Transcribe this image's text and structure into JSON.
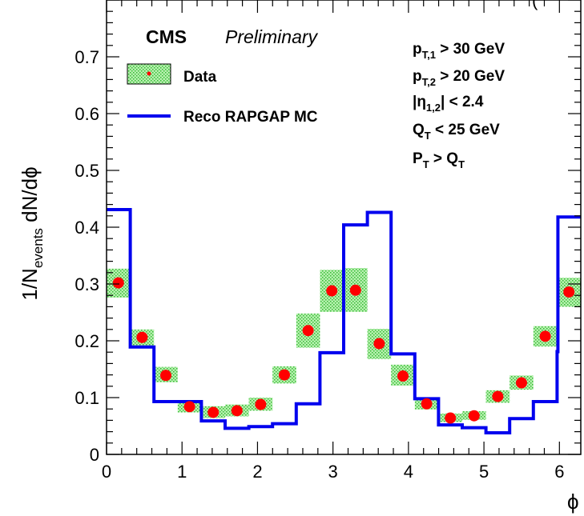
{
  "chart_data": {
    "type": "line",
    "header_fragment": "(",
    "cms_label": "CMS",
    "preliminary_label": "Preliminary",
    "xlabel": "ϕ",
    "ylabel": {
      "main": "1/N",
      "sub": "events",
      "tail": " dN/dϕ"
    },
    "xlim": [
      0,
      6.2832
    ],
    "ylim": [
      0,
      0.8
    ],
    "xticks": [
      "0",
      "1",
      "2",
      "3",
      "4",
      "5",
      "6"
    ],
    "yticks": [
      "0",
      "0.1",
      "0.2",
      "0.3",
      "0.4",
      "0.5",
      "0.6",
      "0.7"
    ],
    "bin_edges": [
      0,
      0.31416,
      0.62832,
      0.94248,
      1.25664,
      1.5708,
      1.88496,
      2.19912,
      2.51327,
      2.82743,
      3.14159,
      3.45575,
      3.76991,
      4.08407,
      4.39823,
      4.71239,
      5.02655,
      5.34071,
      5.65487,
      5.96903,
      6.28319
    ],
    "series": [
      {
        "name": "Data",
        "kind": "points_with_band",
        "marker_color": "#ff0000",
        "band_color": "#33cc33",
        "values": [
          0.302,
          0.206,
          0.139,
          0.084,
          0.074,
          0.077,
          0.088,
          0.14,
          0.218,
          0.288,
          0.289,
          0.195,
          0.138,
          0.089,
          0.064,
          0.068,
          0.102,
          0.126,
          0.208,
          0.286
        ],
        "band_low": [
          0.276,
          0.191,
          0.127,
          0.074,
          0.064,
          0.067,
          0.077,
          0.125,
          0.188,
          0.251,
          0.251,
          0.168,
          0.121,
          0.079,
          0.057,
          0.061,
          0.091,
          0.114,
          0.19,
          0.26
        ],
        "band_high": [
          0.327,
          0.22,
          0.154,
          0.094,
          0.085,
          0.088,
          0.1,
          0.155,
          0.248,
          0.325,
          0.328,
          0.221,
          0.158,
          0.1,
          0.072,
          0.076,
          0.113,
          0.139,
          0.226,
          0.311
        ]
      },
      {
        "name": "Reco RAPGAP MC",
        "kind": "step",
        "color": "#0000ee",
        "values": [
          0.431,
          0.189,
          0.093,
          0.093,
          0.059,
          0.046,
          0.049,
          0.054,
          0.089,
          0.179,
          0.404,
          0.426,
          0.177,
          0.098,
          0.052,
          0.047,
          0.038,
          0.063,
          0.093,
          0.181,
          0.418
        ]
      }
    ],
    "legend": {
      "placement": "top-left",
      "entries": [
        "Data",
        "Reco RAPGAP MC"
      ]
    },
    "cuts": [
      {
        "main": "p",
        "sub": "T,1",
        "tail": " > 30 GeV"
      },
      {
        "main": "p",
        "sub": "T,2",
        "tail": " > 20 GeV"
      },
      {
        "main": "|η",
        "sub": "1,2",
        "tail": "| < 2.4"
      },
      {
        "main": "Q",
        "sub": "T",
        "tail": " < 25 GeV"
      },
      {
        "main": "P",
        "sub": "T",
        "tail": " > Q",
        "sub2": "T"
      }
    ],
    "grid": false
  }
}
